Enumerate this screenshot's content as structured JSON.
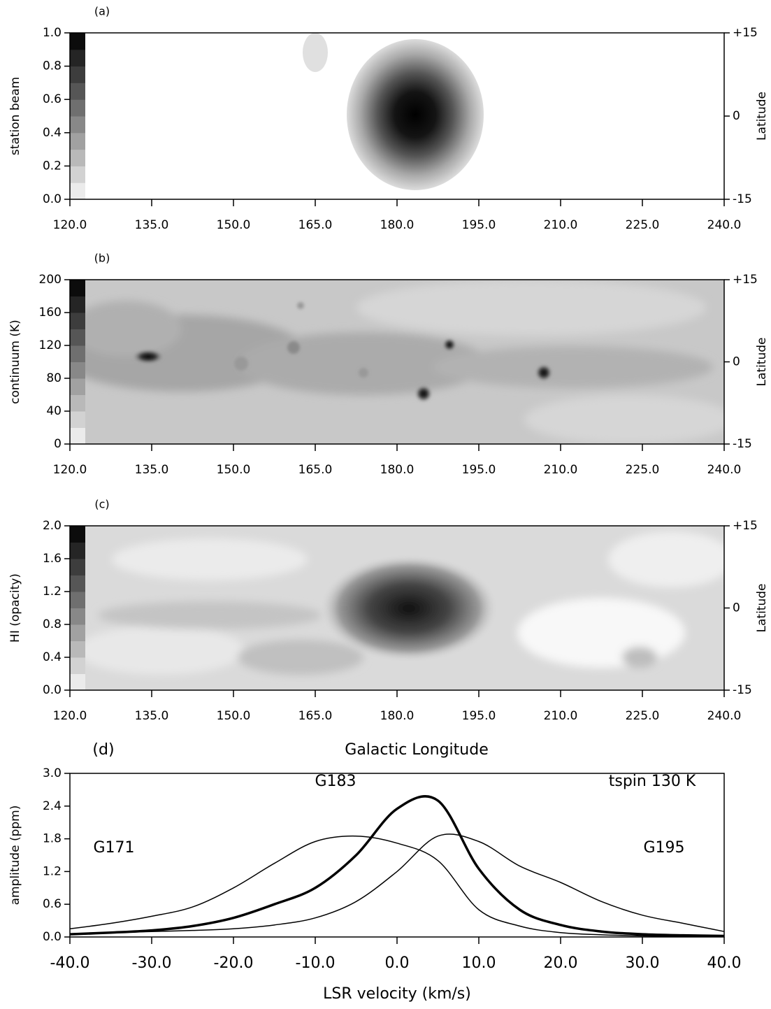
{
  "chart_data": [
    {
      "type": "map",
      "panel_label": "(a)",
      "ylabel": "station beam",
      "y2label": "Latitude",
      "xlim": [
        120,
        240
      ],
      "xticks": [
        {
          "value": 120,
          "label": "120.0"
        },
        {
          "value": 135,
          "label": "135.0"
        },
        {
          "value": 150,
          "label": "150.0"
        },
        {
          "value": 165,
          "label": "165.0"
        },
        {
          "value": 180,
          "label": "180.0"
        },
        {
          "value": 195,
          "label": "195.0"
        },
        {
          "value": 210,
          "label": "210.0"
        },
        {
          "value": 225,
          "label": "225.0"
        },
        {
          "value": 240,
          "label": "240.0"
        }
      ],
      "ylim": [
        0,
        1
      ],
      "yticks": [
        {
          "value": 0,
          "label": "0.0"
        },
        {
          "value": 0.2,
          "label": "0.2"
        },
        {
          "value": 0.4,
          "label": "0.4"
        },
        {
          "value": 0.6,
          "label": "0.6"
        },
        {
          "value": 0.8,
          "label": "0.8"
        },
        {
          "value": 1,
          "label": "1.0"
        }
      ],
      "y2lim": [
        -15,
        15
      ],
      "y2ticks": [
        {
          "value": 15,
          "label": "+15"
        },
        0,
        -15
      ]
    },
    {
      "type": "map",
      "panel_label": "(b)",
      "ylabel": "continuum (K)",
      "y2label": "Latitude",
      "xlim": [
        120,
        240
      ],
      "xticks": [
        {
          "value": 120,
          "label": "120.0"
        },
        {
          "value": 135,
          "label": "135.0"
        },
        {
          "value": 150,
          "label": "150.0"
        },
        {
          "value": 165,
          "label": "165.0"
        },
        {
          "value": 180,
          "label": "180.0"
        },
        {
          "value": 195,
          "label": "195.0"
        },
        {
          "value": 210,
          "label": "210.0"
        },
        {
          "value": 225,
          "label": "225.0"
        },
        {
          "value": 240,
          "label": "240.0"
        }
      ],
      "ylim": [
        0,
        200
      ],
      "yticks": [
        0,
        40,
        80,
        120,
        160,
        200
      ],
      "y2lim": [
        -15,
        15
      ],
      "y2ticks": [
        {
          "value": 15,
          "label": "+15"
        },
        0,
        -15
      ]
    },
    {
      "type": "map",
      "panel_label": "(c)",
      "ylabel": "HI (opacity)",
      "y2label": "Latitude",
      "xlabel": "Galactic Longitude",
      "xlim": [
        120,
        240
      ],
      "xticks": [
        {
          "value": 120,
          "label": "120.0"
        },
        {
          "value": 135,
          "label": "135.0"
        },
        {
          "value": 150,
          "label": "150.0"
        },
        {
          "value": 165,
          "label": "165.0"
        },
        {
          "value": 180,
          "label": "180.0"
        },
        {
          "value": 195,
          "label": "195.0"
        },
        {
          "value": 210,
          "label": "210.0"
        },
        {
          "value": 225,
          "label": "225.0"
        },
        {
          "value": 240,
          "label": "240.0"
        }
      ],
      "ylim": [
        0,
        2
      ],
      "yticks": [
        {
          "value": 0,
          "label": "0.0"
        },
        {
          "value": 0.4,
          "label": "0.4"
        },
        {
          "value": 0.8,
          "label": "0.8"
        },
        {
          "value": 1.2,
          "label": "1.2"
        },
        {
          "value": 1.6,
          "label": "1.6"
        },
        {
          "value": 2,
          "label": "2.0"
        }
      ],
      "y2lim": [
        -15,
        15
      ],
      "y2ticks": [
        {
          "value": 15,
          "label": "+15"
        },
        0,
        -15
      ]
    },
    {
      "type": "line",
      "panel_label": "(d)",
      "xlabel": "LSR velocity (km/s)",
      "ylabel": "amplitude (ppm)",
      "annotation": "tspin 130 K",
      "x": [
        -40,
        -35,
        -30,
        -25,
        -20,
        -15,
        -10,
        -5,
        0,
        5,
        10,
        15,
        20,
        25,
        30,
        35,
        40
      ],
      "xlim": [
        -40,
        40
      ],
      "xticks": [
        {
          "value": -40,
          "label": "-40.0"
        },
        {
          "value": -30,
          "label": "-30.0"
        },
        {
          "value": -20,
          "label": "-20.0"
        },
        {
          "value": -10,
          "label": "-10.0"
        },
        {
          "value": 0,
          "label": "0.0"
        },
        {
          "value": 10,
          "label": "10.0"
        },
        {
          "value": 20,
          "label": "20.0"
        },
        {
          "value": 30,
          "label": "30.0"
        },
        {
          "value": 40,
          "label": "40.0"
        }
      ],
      "ylim": [
        0,
        3
      ],
      "yticks": [
        {
          "value": 0,
          "label": "0.0"
        },
        {
          "value": 0.6,
          "label": "0.6"
        },
        {
          "value": 1.2,
          "label": "1.2"
        },
        {
          "value": 1.8,
          "label": "1.8"
        },
        {
          "value": 2.4,
          "label": "2.4"
        },
        {
          "value": 3,
          "label": "3.0"
        }
      ],
      "series": [
        {
          "name": "G171",
          "color": "#000000",
          "linewidth": 1.5,
          "values": [
            0.15,
            0.25,
            0.38,
            0.55,
            0.9,
            1.35,
            1.75,
            1.85,
            1.72,
            1.4,
            0.5,
            0.2,
            0.08,
            0.04,
            0.02,
            0.01,
            0.01
          ]
        },
        {
          "name": "G183",
          "color": "#000000",
          "linewidth": 3.5,
          "values": [
            0.05,
            0.08,
            0.12,
            0.2,
            0.35,
            0.6,
            0.9,
            1.5,
            2.35,
            2.5,
            1.25,
            0.5,
            0.22,
            0.1,
            0.05,
            0.03,
            0.02
          ]
        },
        {
          "name": "G195",
          "color": "#000000",
          "linewidth": 1.5,
          "values": [
            0.05,
            0.08,
            0.1,
            0.12,
            0.15,
            0.22,
            0.35,
            0.65,
            1.2,
            1.85,
            1.75,
            1.3,
            1.0,
            0.65,
            0.4,
            0.25,
            0.1
          ]
        }
      ]
    }
  ]
}
